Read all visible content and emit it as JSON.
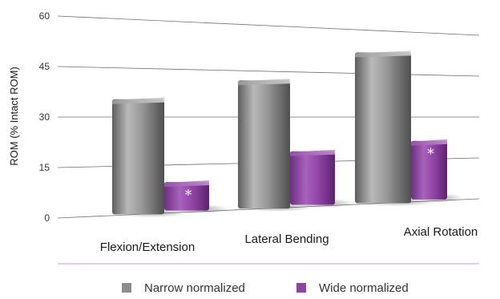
{
  "chart_data": {
    "type": "bar",
    "ylabel": "ROM (% Intact ROM)",
    "ylim": [
      0,
      60
    ],
    "yticks": [
      0,
      15,
      30,
      45,
      60
    ],
    "categories": [
      "Flexion/Extension",
      "Lateral Bending",
      "Axial Rotation"
    ],
    "series": [
      {
        "name": "Narrow normalized",
        "values": [
          35.5,
          42,
          52.5
        ],
        "color": "#8c8c8c"
      },
      {
        "name": "Wide normalized",
        "values": [
          9.5,
          18.5,
          21.5
        ],
        "color": "#8e44a3"
      }
    ],
    "annotations": [
      {
        "category": "Flexion/Extension",
        "series": "Wide normalized",
        "text": "*"
      },
      {
        "category": "Axial Rotation",
        "series": "Wide normalized",
        "text": "*"
      }
    ],
    "grid": true,
    "legend_position": "bottom"
  }
}
